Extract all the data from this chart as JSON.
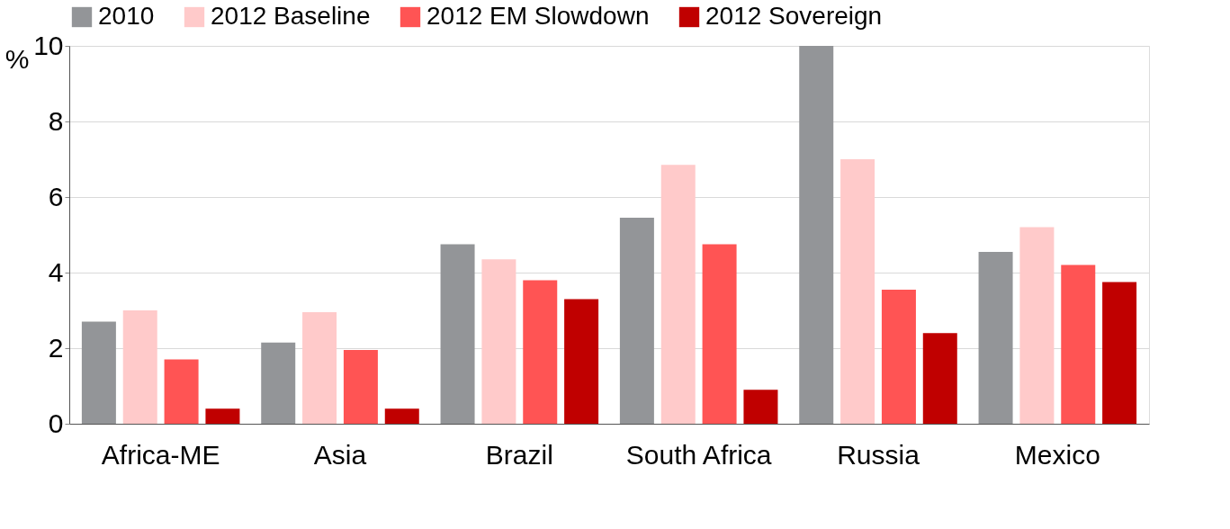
{
  "chart_data": {
    "type": "bar",
    "ylabel": "%",
    "categories": [
      "Africa-ME",
      "Asia",
      "Brazil",
      "South Africa",
      "Russia",
      "Mexico"
    ],
    "series": [
      {
        "name": "2010",
        "color": "#939598",
        "values": [
          2.7,
          2.15,
          4.75,
          5.45,
          10,
          4.55
        ]
      },
      {
        "name": "2012 Baseline",
        "color": "#ffcaca",
        "values": [
          3.0,
          2.95,
          4.35,
          6.85,
          7.0,
          5.2
        ]
      },
      {
        "name": "2012 EM Slowdown",
        "color": "#ff5454",
        "values": [
          1.7,
          1.95,
          3.8,
          4.75,
          3.55,
          4.2
        ]
      },
      {
        "name": "2012 Sovereign",
        "color": "#c00000",
        "values": [
          0.4,
          0.4,
          3.3,
          0.9,
          2.4,
          3.75
        ]
      }
    ],
    "ylim": [
      0,
      10
    ],
    "yticks": [
      0,
      2,
      4,
      6,
      8,
      10
    ],
    "grid": "y",
    "legend": "top"
  }
}
